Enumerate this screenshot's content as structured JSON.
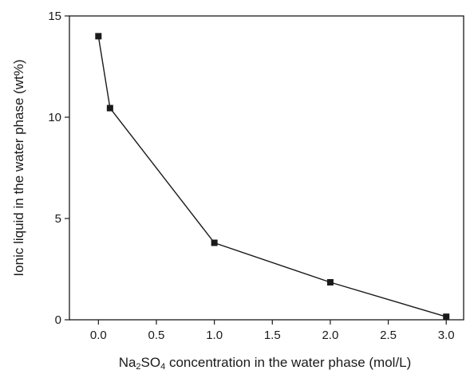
{
  "chart_data": {
    "type": "line",
    "title": "",
    "xlabel": {
      "parts": [
        {
          "text": "Na",
          "sub": false
        },
        {
          "text": "2",
          "sub": true
        },
        {
          "text": "SO",
          "sub": false
        },
        {
          "text": "4",
          "sub": true
        },
        {
          "text": " concentration in the water phase (mol/L)",
          "sub": false
        }
      ]
    },
    "ylabel": "Ionic liquid in the water phase (wt%)",
    "xlim": [
      -0.25,
      3.15
    ],
    "ylim": [
      0,
      15
    ],
    "xticks": [
      0.0,
      0.5,
      1.0,
      1.5,
      2.0,
      2.5,
      3.0
    ],
    "xtick_labels": [
      "0.0",
      "0.5",
      "1.0",
      "1.5",
      "2.0",
      "2.5",
      "3.0"
    ],
    "yticks": [
      0,
      5,
      10,
      15
    ],
    "ytick_labels": [
      "0",
      "5",
      "10",
      "15"
    ],
    "grid": false,
    "legend": "none",
    "series": [
      {
        "marker": "square",
        "color": "#1a1a1a",
        "x": [
          0.0,
          0.1,
          1.0,
          2.0,
          3.0
        ],
        "y": [
          14.0,
          10.45,
          3.8,
          1.85,
          0.15
        ]
      }
    ]
  }
}
